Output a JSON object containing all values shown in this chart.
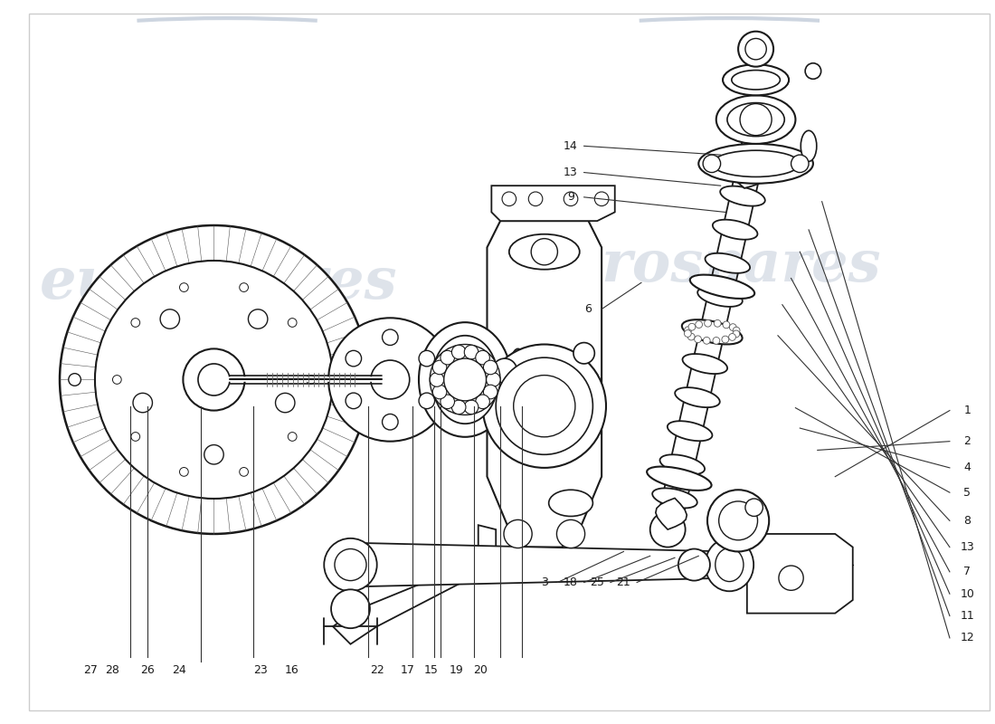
{
  "background_color": "#ffffff",
  "line_color": "#1a1a1a",
  "watermark_text": "eurospares",
  "watermark_color": "#cdd5e0",
  "fig_width": 11.0,
  "fig_height": 8.0,
  "dpi": 100,
  "right_labels": [
    "1",
    "2",
    "4",
    "5",
    "8",
    "13",
    "7",
    "10",
    "11",
    "12"
  ],
  "left_labels": [
    "14",
    "13",
    "9",
    "6",
    "3",
    "18",
    "25",
    "21"
  ],
  "bottom_labels": [
    "27",
    "28",
    "26",
    "24",
    "23",
    "16",
    "22",
    "17",
    "15",
    "19",
    "20"
  ]
}
